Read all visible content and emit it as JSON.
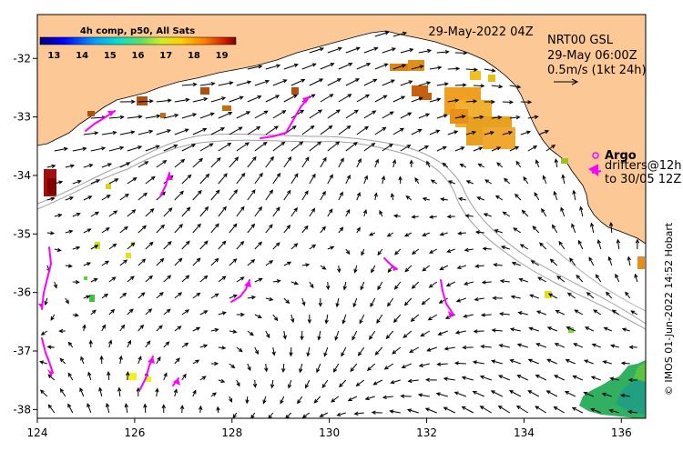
{
  "map": {
    "date_label": "29-May-2022 04Z",
    "product": {
      "line1": "NRT00 GSL",
      "line2": "29-May 06:00Z",
      "line3": "0.5m/s (1kt 24h)"
    },
    "legend": {
      "argo_label": "Argo",
      "drifters_label": "drifters@12h",
      "drifters_to": "to 30/05 12Z"
    },
    "colorbar": {
      "title": "4h comp, p50, All Sats",
      "ticks": [
        "13",
        "14",
        "15",
        "16",
        "17",
        "18",
        "19"
      ],
      "min": 12.5,
      "max": 19.5
    },
    "credit": "© IMOS 01-Jun-2022 14:52 Hobart",
    "x_axis": {
      "ticks": [
        "124",
        "126",
        "128",
        "130",
        "132",
        "134",
        "136"
      ],
      "range": [
        124,
        136.5
      ]
    },
    "y_axis": {
      "ticks": [
        "-32",
        "-33",
        "-34",
        "-35",
        "-36",
        "-37",
        "-38"
      ],
      "range": [
        -38.15,
        -31.25
      ]
    },
    "colors": {
      "land": "#fcc896",
      "argo": "#ff00ff",
      "drifter": "#ff00ff",
      "isobath": "#a0a0a0"
    }
  }
}
